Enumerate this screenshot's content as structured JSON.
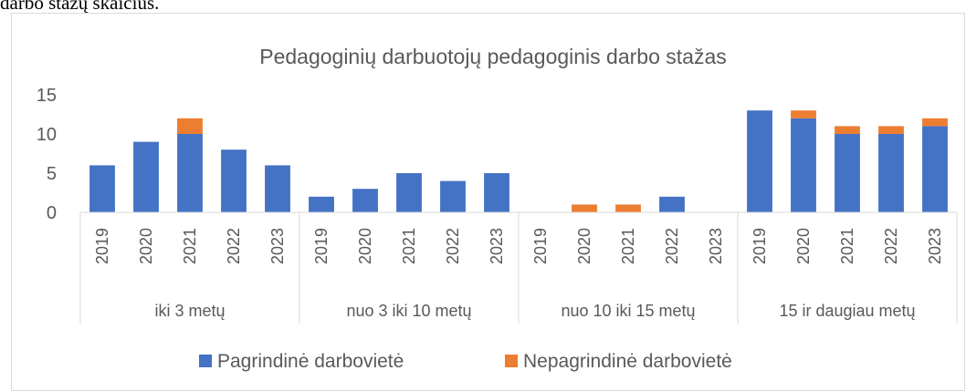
{
  "caption": "darbo stažų skaičius.",
  "chart_data": {
    "type": "stacked-bar",
    "title": "Pedagoginių darbuotojų pedagoginis darbo stažas",
    "groups": [
      {
        "name": "iki 3 metų",
        "categories": [
          "2019",
          "2020",
          "2021",
          "2022",
          "2023"
        ]
      },
      {
        "name": "nuo 3 iki 10 metų",
        "categories": [
          "2019",
          "2020",
          "2021",
          "2022",
          "2023"
        ]
      },
      {
        "name": "nuo 10 iki 15 metų",
        "categories": [
          "2019",
          "2020",
          "2021",
          "2022",
          "2023"
        ]
      },
      {
        "name": "15 ir daugiau metų",
        "categories": [
          "2019",
          "2020",
          "2021",
          "2022",
          "2023"
        ]
      }
    ],
    "series": [
      {
        "name": "Pagrindinė darbovietė",
        "color": "#4472c4",
        "values": [
          6,
          9,
          10,
          8,
          6,
          2,
          3,
          5,
          4,
          5,
          0,
          0,
          0,
          2,
          0,
          13,
          12,
          10,
          10,
          11
        ]
      },
      {
        "name": "Nepagrindinė darbovietė",
        "color": "#ed7d31",
        "values": [
          0,
          0,
          2,
          0,
          0,
          0,
          0,
          0,
          0,
          0,
          0,
          1,
          1,
          0,
          0,
          0,
          1,
          1,
          1,
          1
        ]
      }
    ],
    "ylim": [
      0,
      15
    ],
    "yticks": [
      0,
      5,
      10,
      15
    ],
    "grid": false,
    "legend": "bottom"
  }
}
